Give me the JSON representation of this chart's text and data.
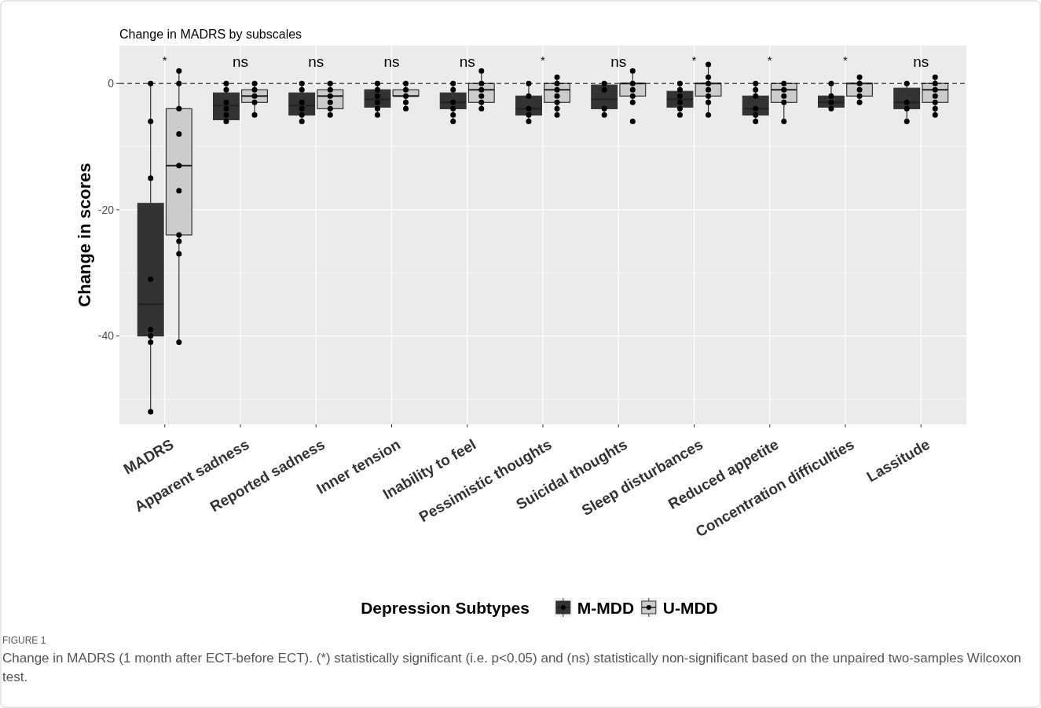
{
  "chart_data": {
    "type": "box",
    "title": "Change in MADRS by subscales",
    "ylabel": "Change in scores",
    "legend_title": "Depression Subtypes",
    "legend": "bottom",
    "grid": true,
    "marker": "circle",
    "categories": [
      "MADRS",
      "Apparent sadness",
      "Reported sadness",
      "Inner tension",
      "Inability to feel",
      "Pessimistic thoughts",
      "Suicidal thoughts",
      "Sleep disturbances",
      "Reduced appetite",
      "Concentration difficulties",
      "Lassitude"
    ],
    "ylim": [
      -54,
      6
    ],
    "yticks": [
      -40,
      -20,
      0
    ],
    "ref_lines": [
      {
        "axis": "y",
        "value": 0,
        "label": null,
        "line_style": "dashed",
        "color": "#000000"
      }
    ],
    "series": [
      {
        "name": "M-MDD",
        "color": "#333333",
        "boxes": [
          {
            "low": -52,
            "q1": -40,
            "median": -35,
            "q3": -19,
            "high": 0
          },
          {
            "low": -6,
            "q1": -5.75,
            "median": -3.5,
            "q3": -1.5,
            "high": 0
          },
          {
            "low": -6,
            "q1": -5,
            "median": -3.5,
            "q3": -1.5,
            "high": 0
          },
          {
            "low": -5,
            "q1": -3.75,
            "median": -2.5,
            "q3": -1,
            "high": 0
          },
          {
            "low": -6,
            "q1": -4,
            "median": -3,
            "q3": -1.5,
            "high": 0
          },
          {
            "low": -6,
            "q1": -5,
            "median": -4,
            "q3": -2,
            "high": 0
          },
          {
            "low": -5,
            "q1": -4,
            "median": -2.5,
            "q3": -0.25,
            "high": 0
          },
          {
            "low": -5,
            "q1": -3.75,
            "median": -2.5,
            "q3": -1.25,
            "high": 0
          },
          {
            "low": -6,
            "q1": -5,
            "median": -4,
            "q3": -2,
            "high": 0
          },
          {
            "low": -4,
            "q1": -3.75,
            "median": -3,
            "q3": -2,
            "high": 0
          },
          {
            "low": -6,
            "q1": -4,
            "median": -3,
            "q3": -0.75,
            "high": 0
          }
        ]
      },
      {
        "name": "U-MDD",
        "color": "#cccccc",
        "boxes": [
          {
            "low": -41,
            "q1": -24,
            "median": -13,
            "q3": -4,
            "high": 2
          },
          {
            "low": -5,
            "q1": -3,
            "median": -2,
            "q3": -1,
            "high": 0
          },
          {
            "low": -5,
            "q1": -4,
            "median": -2,
            "q3": -1,
            "high": 0
          },
          {
            "low": -4,
            "q1": -2,
            "median": -2,
            "q3": -1,
            "high": 0
          },
          {
            "low": -4,
            "q1": -3,
            "median": -1,
            "q3": 0,
            "high": 2
          },
          {
            "low": -5,
            "q1": -3,
            "median": -1,
            "q3": 0,
            "high": 1
          },
          {
            "low": -3,
            "q1": -2,
            "median": 0,
            "q3": 0,
            "high": 2
          },
          {
            "low": -5,
            "q1": -2,
            "median": 0,
            "q3": 0,
            "high": 3
          },
          {
            "low": -6,
            "q1": -3,
            "median": -1,
            "q3": 0,
            "high": 0
          },
          {
            "low": -3,
            "q1": -2,
            "median": 0,
            "q3": 0,
            "high": 1
          },
          {
            "low": -5,
            "q1": -3,
            "median": -1,
            "q3": 0,
            "high": 1
          }
        ]
      },
      {
        "type": "scatter",
        "color": "#000000",
        "x": [
          "MADRS",
          "MADRS",
          "MADRS",
          "MADRS",
          "MADRS",
          "MADRS",
          "MADRS",
          "MADRS",
          "Apparent sadness",
          "Apparent sadness",
          "Apparent sadness",
          "Apparent sadness",
          "Apparent sadness",
          "Apparent sadness",
          "Reported sadness",
          "Reported sadness",
          "Reported sadness",
          "Reported sadness",
          "Reported sadness",
          "Reported sadness",
          "Inner tension",
          "Inner tension",
          "Inner tension",
          "Inner tension",
          "Inner tension",
          "Inner tension",
          "Inability to feel",
          "Inability to feel",
          "Inability to feel",
          "Inability to feel",
          "Inability to feel",
          "Inability to feel",
          "Pessimistic thoughts",
          "Pessimistic thoughts",
          "Pessimistic thoughts",
          "Pessimistic thoughts",
          "Pessimistic thoughts",
          "Suicidal thoughts",
          "Suicidal thoughts",
          "Suicidal thoughts",
          "Suicidal thoughts",
          "Sleep disturbances",
          "Sleep disturbances",
          "Sleep disturbances",
          "Sleep disturbances",
          "Sleep disturbances",
          "Sleep disturbances",
          "Reduced appetite",
          "Reduced appetite",
          "Reduced appetite",
          "Reduced appetite",
          "Reduced appetite",
          "Reduced appetite",
          "Concentration difficulties",
          "Concentration difficulties",
          "Concentration difficulties",
          "Concentration difficulties",
          "Lassitude",
          "Lassitude",
          "Lassitude",
          "Lassitude"
        ],
        "values": [
          0,
          -6,
          -15,
          -31,
          -39,
          -40,
          -41,
          -52,
          0,
          -1,
          -3,
          -4,
          -5,
          -6,
          0,
          -1,
          -3,
          -4,
          -5,
          -6,
          0,
          -1,
          -2,
          -3,
          -4,
          -5,
          0,
          -1,
          -3,
          -4,
          -5,
          -6,
          0,
          -2,
          -4,
          -5,
          -6,
          0,
          -1,
          -4,
          -5,
          0,
          -1,
          -2,
          -3,
          -4,
          -5,
          0,
          -1,
          -2,
          -4,
          -5,
          -6,
          0,
          -2,
          -3,
          -4,
          0,
          -3,
          -4,
          -6
        ]
      },
      {
        "type": "scatter",
        "color": "#000000",
        "x": [
          "MADRS",
          "MADRS",
          "MADRS",
          "MADRS",
          "MADRS",
          "MADRS",
          "MADRS",
          "MADRS",
          "MADRS",
          "MADRS",
          "Apparent sadness",
          "Apparent sadness",
          "Apparent sadness",
          "Apparent sadness",
          "Apparent sadness",
          "Reported sadness",
          "Reported sadness",
          "Reported sadness",
          "Reported sadness",
          "Reported sadness",
          "Reported sadness",
          "Inner tension",
          "Inner tension",
          "Inner tension",
          "Inner tension",
          "Inner tension",
          "Inability to feel",
          "Inability to feel",
          "Inability to feel",
          "Inability to feel",
          "Inability to feel",
          "Inability to feel",
          "Pessimistic thoughts",
          "Pessimistic thoughts",
          "Pessimistic thoughts",
          "Pessimistic thoughts",
          "Pessimistic thoughts",
          "Pessimistic thoughts",
          "Pessimistic thoughts",
          "Suicidal thoughts",
          "Suicidal thoughts",
          "Suicidal thoughts",
          "Suicidal thoughts",
          "Suicidal thoughts",
          "Suicidal thoughts",
          "Sleep disturbances",
          "Sleep disturbances",
          "Sleep disturbances",
          "Sleep disturbances",
          "Sleep disturbances",
          "Sleep disturbances",
          "Sleep disturbances",
          "Reduced appetite",
          "Reduced appetite",
          "Reduced appetite",
          "Reduced appetite",
          "Reduced appetite",
          "Concentration difficulties",
          "Concentration difficulties",
          "Concentration difficulties",
          "Concentration difficulties",
          "Concentration difficulties",
          "Lassitude",
          "Lassitude",
          "Lassitude",
          "Lassitude",
          "Lassitude",
          "Lassitude",
          "Lassitude"
        ],
        "values": [
          2,
          0,
          -4,
          -8,
          -13,
          -17,
          -24,
          -25,
          -27,
          -41,
          0,
          -1,
          -2,
          -3,
          -5,
          0,
          -1,
          -2,
          -3,
          -4,
          -5,
          0,
          -1,
          -2,
          -3,
          -4,
          2,
          0,
          -1,
          -2,
          -3,
          -4,
          1,
          0,
          -1,
          -2,
          -3,
          -4,
          -5,
          2,
          0,
          -1,
          -2,
          -3,
          -6,
          3,
          1,
          0,
          -1,
          -2,
          -3,
          -5,
          0,
          -1,
          -2,
          -3,
          -6,
          1,
          0,
          -1,
          -2,
          -3,
          1,
          0,
          -1,
          -2,
          -3,
          -4,
          -5
        ]
      }
    ],
    "annotations": [
      "*",
      "ns",
      "ns",
      "ns",
      "ns",
      "*",
      "ns",
      "*",
      "*",
      "*",
      "ns",
      "FIGURE 1",
      "Change in MADRS (1 month after ECT-before ECT). (*) statistically significant (i.e. p<0.05) and (ns) statistically non-significant based on the unpaired two-samples Wilcoxon test."
    ]
  }
}
